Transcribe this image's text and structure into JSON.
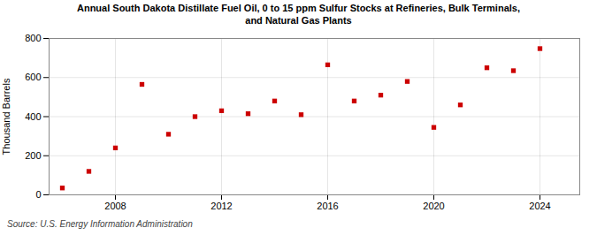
{
  "chart_data": {
    "type": "scatter",
    "title": "Annual South Dakota Distillate Fuel Oil, 0 to 15 ppm Sulfur Stocks at Refineries, Bulk Terminals,\nand Natural Gas Plants",
    "ylabel": "Thousand Barrels",
    "annotations": [
      "Source: U.S. Energy Information Administration"
    ],
    "x": [
      2006,
      2007,
      2008,
      2009,
      2010,
      2011,
      2012,
      2013,
      2014,
      2015,
      2016,
      2017,
      2018,
      2019,
      2020,
      2021,
      2022,
      2023,
      2024
    ],
    "values": [
      35,
      120,
      240,
      565,
      310,
      400,
      430,
      415,
      480,
      410,
      665,
      480,
      510,
      580,
      345,
      460,
      650,
      635,
      748
    ],
    "color": "#cc0000",
    "marker": "square",
    "xlim": [
      2005.5,
      2025.5
    ],
    "ylim": [
      0,
      800
    ],
    "xticks": [
      2008,
      2012,
      2016,
      2020,
      2024
    ],
    "yticks": [
      0,
      200,
      400,
      600,
      800
    ],
    "grid": true
  }
}
